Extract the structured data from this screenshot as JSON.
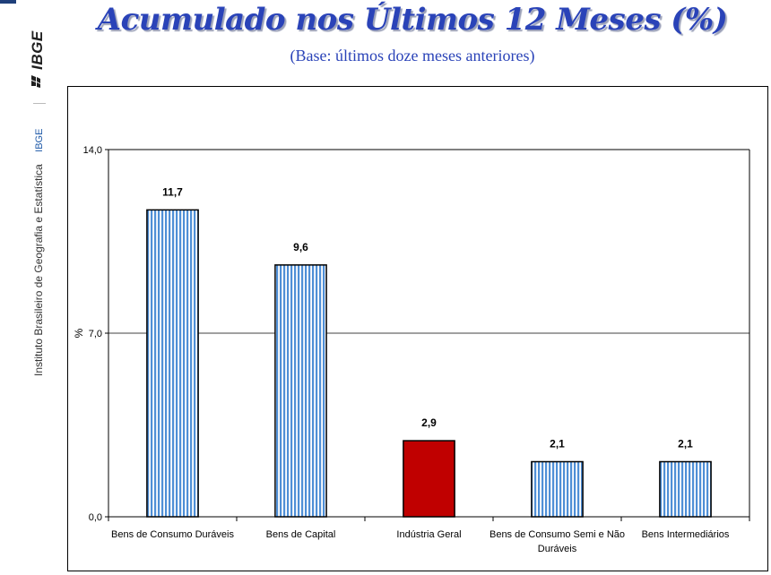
{
  "branding": {
    "logo_text": "IBGE",
    "abbr": "IBGE",
    "institute": "Instituto Brasileiro de Geografia e Estatística"
  },
  "header": {
    "title": "Acumulado nos Últimos 12 Meses (%)",
    "subtitle": "(Base: últimos doze meses anteriores)"
  },
  "colors": {
    "title": "#2a43b8",
    "bar_stripe": "#4f8fd6",
    "bar_highlight": "#c00000"
  },
  "chart_data": {
    "type": "bar",
    "categories": [
      "Bens de Consumo Duráveis",
      "Bens de Capital",
      "Indústria Geral",
      "Bens de Consumo Semi e Não Duráveis",
      "Bens Intermediários"
    ],
    "category_lines": [
      [
        "Bens de Consumo Duráveis"
      ],
      [
        "Bens de Capital"
      ],
      [
        "Indústria Geral"
      ],
      [
        "Bens de Consumo Semi e Não",
        "Duráveis"
      ],
      [
        "Bens Intermediários"
      ]
    ],
    "values": [
      11.7,
      9.6,
      2.9,
      2.1,
      2.1
    ],
    "value_labels": [
      "11,7",
      "9,6",
      "2,9",
      "2,1",
      "2,1"
    ],
    "highlight_index": 2,
    "ylabel": "%",
    "ylim": [
      0,
      14
    ],
    "yticks": [
      0,
      7,
      14
    ],
    "ytick_labels": [
      "0,0",
      "7,0",
      "14,0"
    ],
    "grid": true
  }
}
